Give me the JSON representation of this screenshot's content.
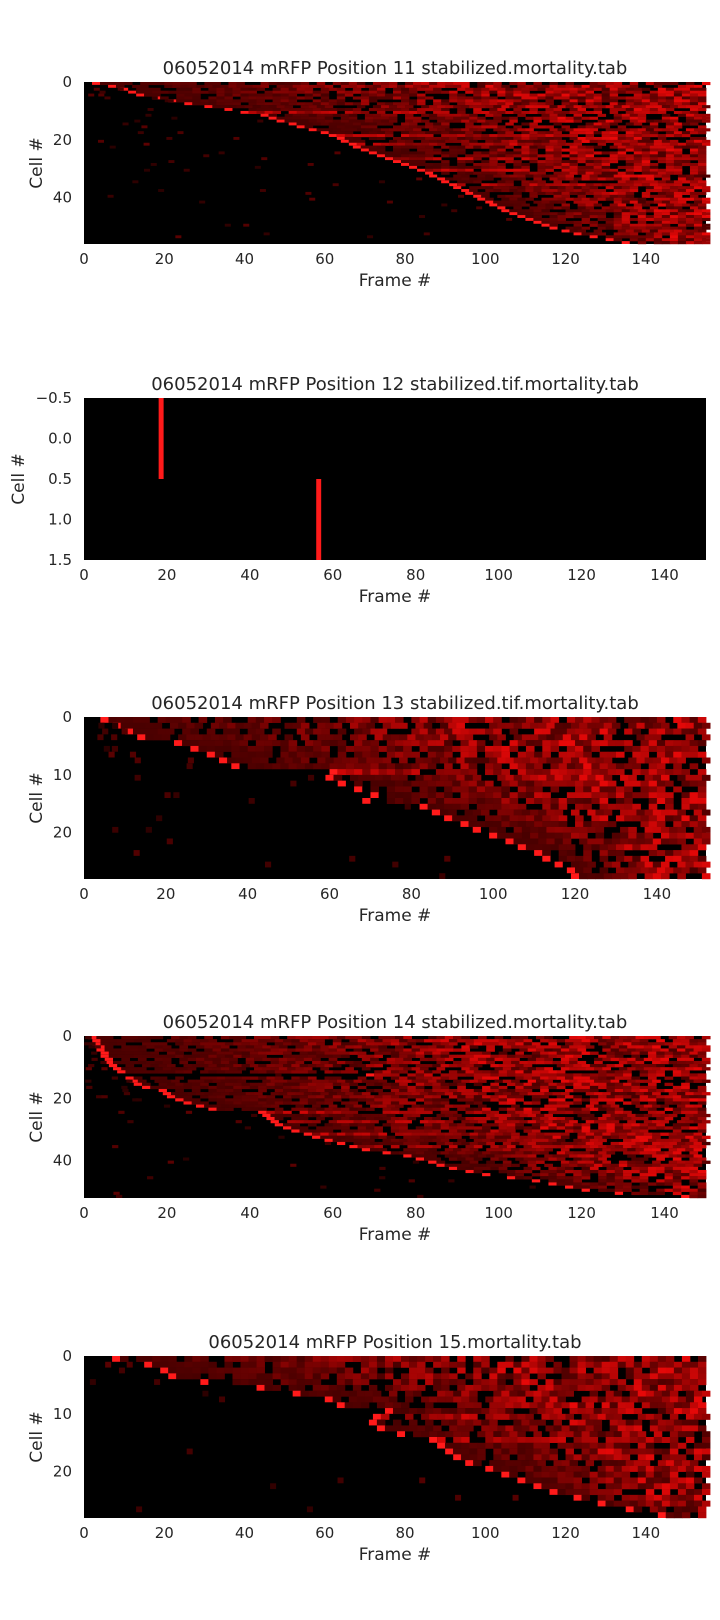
{
  "colors": {
    "background": "#000000",
    "heat_high": "#ff1a1a",
    "heat_mid": "#8b0000",
    "text": "#262626"
  },
  "chart_data": [
    {
      "type": "heatmap",
      "title": "06052014 mRFP Position 11 stabilized.mortality.tab",
      "xlabel": "Frame #",
      "ylabel": "Cell #",
      "xlim": [
        0,
        155
      ],
      "ylim": [
        56,
        0
      ],
      "xticks": [
        0,
        20,
        40,
        60,
        80,
        100,
        120,
        140
      ],
      "yticks": [
        0,
        20,
        40
      ],
      "ytick_labels": [
        "0",
        "20",
        "40"
      ],
      "n_rows": 56,
      "grid": false,
      "rows": [
        {
          "cell": 0,
          "onset": 2
        },
        {
          "cell": 1,
          "onset": 6
        },
        {
          "cell": 2,
          "onset": 9
        },
        {
          "cell": 3,
          "onset": 11
        },
        {
          "cell": 4,
          "onset": 13
        },
        {
          "cell": 5,
          "onset": 17
        },
        {
          "cell": 6,
          "onset": 21
        },
        {
          "cell": 7,
          "onset": 25
        },
        {
          "cell": 8,
          "onset": 30
        },
        {
          "cell": 9,
          "onset": 35
        },
        {
          "cell": 10,
          "onset": 39,
          "persistent": true
        },
        {
          "cell": 11,
          "onset": 44
        },
        {
          "cell": 12,
          "onset": 46
        },
        {
          "cell": 13,
          "onset": 48
        },
        {
          "cell": 14,
          "onset": 51
        },
        {
          "cell": 15,
          "onset": 53
        },
        {
          "cell": 16,
          "onset": 56
        },
        {
          "cell": 17,
          "onset": 59
        },
        {
          "cell": 18,
          "onset": 61,
          "persistent": true
        },
        {
          "cell": 19,
          "onset": 63
        },
        {
          "cell": 20,
          "onset": 64
        },
        {
          "cell": 21,
          "onset": 66,
          "persistent": true
        },
        {
          "cell": 22,
          "onset": 67
        },
        {
          "cell": 23,
          "onset": 69
        },
        {
          "cell": 24,
          "onset": 71
        },
        {
          "cell": 25,
          "onset": 73
        },
        {
          "cell": 26,
          "onset": 75,
          "persistent": true
        },
        {
          "cell": 27,
          "onset": 77
        },
        {
          "cell": 28,
          "onset": 79
        },
        {
          "cell": 29,
          "onset": 81
        },
        {
          "cell": 30,
          "onset": 83,
          "persistent": true
        },
        {
          "cell": 31,
          "onset": 85
        },
        {
          "cell": 32,
          "onset": 86
        },
        {
          "cell": 33,
          "onset": 88
        },
        {
          "cell": 34,
          "onset": 89
        },
        {
          "cell": 35,
          "onset": 91,
          "persistent": true
        },
        {
          "cell": 36,
          "onset": 92
        },
        {
          "cell": 37,
          "onset": 94
        },
        {
          "cell": 38,
          "onset": 95
        },
        {
          "cell": 39,
          "onset": 97
        },
        {
          "cell": 40,
          "onset": 98
        },
        {
          "cell": 41,
          "onset": 100
        },
        {
          "cell": 42,
          "onset": 101
        },
        {
          "cell": 43,
          "onset": 103
        },
        {
          "cell": 44,
          "onset": 104
        },
        {
          "cell": 45,
          "onset": 106
        },
        {
          "cell": 46,
          "onset": 108
        },
        {
          "cell": 47,
          "onset": 110
        },
        {
          "cell": 48,
          "onset": 112
        },
        {
          "cell": 49,
          "onset": 114
        },
        {
          "cell": 50,
          "onset": 116
        },
        {
          "cell": 51,
          "onset": 119
        },
        {
          "cell": 52,
          "onset": 122
        },
        {
          "cell": 53,
          "onset": 126
        },
        {
          "cell": 54,
          "onset": 130
        },
        {
          "cell": 55,
          "onset": 134
        }
      ]
    },
    {
      "type": "heatmap",
      "title": "06052014 mRFP Position 12 stabilized.tif.mortality.tab",
      "xlabel": "Frame #",
      "ylabel": "Cell #",
      "xlim": [
        0,
        150
      ],
      "ylim": [
        1.5,
        -0.5
      ],
      "xticks": [
        0,
        20,
        40,
        60,
        80,
        100,
        120,
        140
      ],
      "yticks": [
        -0.5,
        0.0,
        0.5,
        1.0,
        1.5
      ],
      "ytick_labels": [
        "−0.5",
        "0.0",
        "0.5",
        "1.0",
        "1.5"
      ],
      "n_rows": 2,
      "grid": false,
      "rows": [
        {
          "cell": 0,
          "onset": 18,
          "single": true
        },
        {
          "cell": 1,
          "onset": 56,
          "single": true
        }
      ]
    },
    {
      "type": "heatmap",
      "title": "06052014 mRFP Position 13 stabilized.tif.mortality.tab",
      "xlabel": "Frame #",
      "ylabel": "Cell #",
      "xlim": [
        0,
        152
      ],
      "ylim": [
        28,
        0
      ],
      "xticks": [
        0,
        20,
        40,
        60,
        80,
        100,
        120,
        140
      ],
      "yticks": [
        0,
        10,
        20
      ],
      "ytick_labels": [
        "0",
        "10",
        "20"
      ],
      "n_rows": 28,
      "grid": false,
      "rows": [
        {
          "cell": 0,
          "onset": 4
        },
        {
          "cell": 1,
          "onset": 7
        },
        {
          "cell": 2,
          "onset": 10
        },
        {
          "cell": 3,
          "onset": 13
        },
        {
          "cell": 4,
          "onset": 22
        },
        {
          "cell": 5,
          "onset": 26
        },
        {
          "cell": 6,
          "onset": 30
        },
        {
          "cell": 7,
          "onset": 33
        },
        {
          "cell": 8,
          "onset": 36
        },
        {
          "cell": 9,
          "onset": 60,
          "persistent": true
        },
        {
          "cell": 10,
          "onset": 59
        },
        {
          "cell": 11,
          "onset": 62
        },
        {
          "cell": 12,
          "onset": 66
        },
        {
          "cell": 13,
          "onset": 70
        },
        {
          "cell": 14,
          "onset": 68
        },
        {
          "cell": 15,
          "onset": 82
        },
        {
          "cell": 16,
          "onset": 85
        },
        {
          "cell": 17,
          "onset": 88
        },
        {
          "cell": 18,
          "onset": 92
        },
        {
          "cell": 19,
          "onset": 95
        },
        {
          "cell": 20,
          "onset": 99
        },
        {
          "cell": 21,
          "onset": 103
        },
        {
          "cell": 22,
          "onset": 106
        },
        {
          "cell": 23,
          "onset": 110
        },
        {
          "cell": 24,
          "onset": 112
        },
        {
          "cell": 25,
          "onset": 115
        },
        {
          "cell": 26,
          "onset": 118
        },
        {
          "cell": 27,
          "onset": 119
        }
      ]
    },
    {
      "type": "heatmap",
      "title": "06052014 mRFP Position 14 stabilized.mortality.tab",
      "xlabel": "Frame #",
      "ylabel": "Cell #",
      "xlim": [
        0,
        150
      ],
      "ylim": [
        52,
        0
      ],
      "xticks": [
        0,
        20,
        40,
        60,
        80,
        100,
        120,
        140
      ],
      "yticks": [
        0,
        20,
        40
      ],
      "ytick_labels": [
        "0",
        "20",
        "40"
      ],
      "n_rows": 52,
      "grid": false,
      "rows": [
        {
          "cell": 0,
          "onset": 1
        },
        {
          "cell": 1,
          "onset": 2
        },
        {
          "cell": 2,
          "onset": 2
        },
        {
          "cell": 3,
          "onset": 3
        },
        {
          "cell": 4,
          "onset": 3
        },
        {
          "cell": 5,
          "onset": 4
        },
        {
          "cell": 6,
          "onset": 4
        },
        {
          "cell": 7,
          "onset": 5
        },
        {
          "cell": 8,
          "onset": 5
        },
        {
          "cell": 9,
          "onset": 6
        },
        {
          "cell": 10,
          "onset": 7
        },
        {
          "cell": 11,
          "onset": 8
        },
        {
          "cell": 12,
          "onset": 68,
          "persistent": true
        },
        {
          "cell": 13,
          "onset": 10
        },
        {
          "cell": 14,
          "onset": 11
        },
        {
          "cell": 15,
          "onset": 12
        },
        {
          "cell": 16,
          "onset": 14
        },
        {
          "cell": 17,
          "onset": 18
        },
        {
          "cell": 18,
          "onset": 19
        },
        {
          "cell": 19,
          "onset": 20
        },
        {
          "cell": 20,
          "onset": 22
        },
        {
          "cell": 21,
          "onset": 24
        },
        {
          "cell": 22,
          "onset": 27
        },
        {
          "cell": 23,
          "onset": 30
        },
        {
          "cell": 24,
          "onset": 42,
          "persistent": true
        },
        {
          "cell": 25,
          "onset": 43
        },
        {
          "cell": 26,
          "onset": 44
        },
        {
          "cell": 27,
          "onset": 45,
          "persistent": true
        },
        {
          "cell": 28,
          "onset": 46
        },
        {
          "cell": 29,
          "onset": 48
        },
        {
          "cell": 30,
          "onset": 50
        },
        {
          "cell": 31,
          "onset": 53,
          "persistent": true
        },
        {
          "cell": 32,
          "onset": 55
        },
        {
          "cell": 33,
          "onset": 58
        },
        {
          "cell": 34,
          "onset": 61
        },
        {
          "cell": 35,
          "onset": 64,
          "persistent": true
        },
        {
          "cell": 36,
          "onset": 67
        },
        {
          "cell": 37,
          "onset": 72
        },
        {
          "cell": 38,
          "onset": 77
        },
        {
          "cell": 39,
          "onset": 80
        },
        {
          "cell": 40,
          "onset": 83
        },
        {
          "cell": 41,
          "onset": 85
        },
        {
          "cell": 42,
          "onset": 88
        },
        {
          "cell": 43,
          "onset": 92
        },
        {
          "cell": 44,
          "onset": 96
        },
        {
          "cell": 45,
          "onset": 102
        },
        {
          "cell": 46,
          "onset": 108
        },
        {
          "cell": 47,
          "onset": 112
        },
        {
          "cell": 48,
          "onset": 116
        },
        {
          "cell": 49,
          "onset": 120
        },
        {
          "cell": 50,
          "onset": 128
        },
        {
          "cell": 51,
          "onset": 144
        }
      ]
    },
    {
      "type": "heatmap",
      "title": "06052014 mRFP Position 15.mortality.tab",
      "xlabel": "Frame #",
      "ylabel": "Cell #",
      "xlim": [
        0,
        155
      ],
      "ylim": [
        28,
        0
      ],
      "xticks": [
        0,
        20,
        40,
        60,
        80,
        100,
        120,
        140
      ],
      "yticks": [
        0,
        10,
        20
      ],
      "ytick_labels": [
        "0",
        "10",
        "20"
      ],
      "n_rows": 28,
      "grid": false,
      "rows": [
        {
          "cell": 0,
          "onset": 7
        },
        {
          "cell": 1,
          "onset": 15
        },
        {
          "cell": 2,
          "onset": 19
        },
        {
          "cell": 3,
          "onset": 21
        },
        {
          "cell": 4,
          "onset": 29
        },
        {
          "cell": 5,
          "onset": 43
        },
        {
          "cell": 6,
          "onset": 52
        },
        {
          "cell": 7,
          "onset": 60
        },
        {
          "cell": 8,
          "onset": 63
        },
        {
          "cell": 9,
          "onset": 75
        },
        {
          "cell": 10,
          "onset": 72,
          "persistent": true
        },
        {
          "cell": 11,
          "onset": 71
        },
        {
          "cell": 12,
          "onset": 73
        },
        {
          "cell": 13,
          "onset": 78
        },
        {
          "cell": 14,
          "onset": 86,
          "persistent": true
        },
        {
          "cell": 15,
          "onset": 88
        },
        {
          "cell": 16,
          "onset": 90
        },
        {
          "cell": 17,
          "onset": 92
        },
        {
          "cell": 18,
          "onset": 95
        },
        {
          "cell": 19,
          "onset": 100
        },
        {
          "cell": 20,
          "onset": 104
        },
        {
          "cell": 21,
          "onset": 108
        },
        {
          "cell": 22,
          "onset": 112
        },
        {
          "cell": 23,
          "onset": 116
        },
        {
          "cell": 24,
          "onset": 122
        },
        {
          "cell": 25,
          "onset": 128
        },
        {
          "cell": 26,
          "onset": 135
        },
        {
          "cell": 27,
          "onset": 143
        }
      ]
    }
  ]
}
